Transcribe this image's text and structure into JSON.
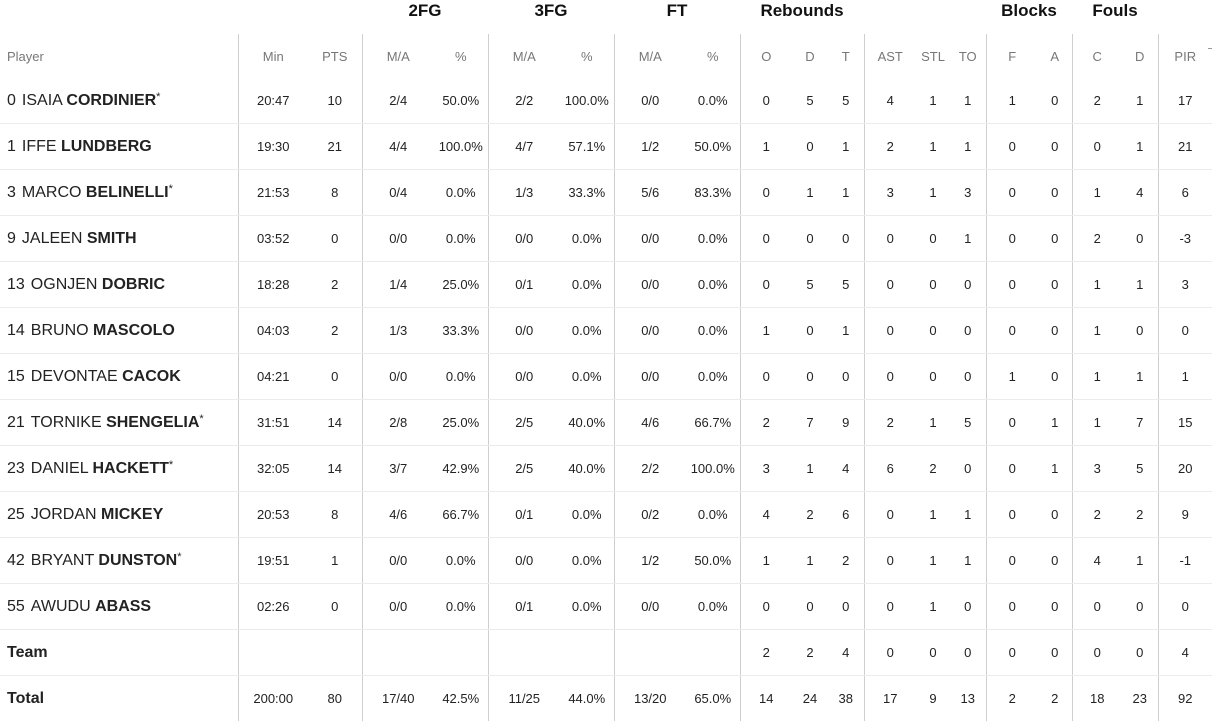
{
  "groups": {
    "fg2": "2FG",
    "fg3": "3FG",
    "ft": "FT",
    "rebounds": "Rebounds",
    "blocks": "Blocks",
    "fouls": "Fouls"
  },
  "columns": {
    "player": "Player",
    "min": "Min",
    "pts": "PTS",
    "fg2_ma": "M/A",
    "fg2_pct": "%",
    "fg3_ma": "M/A",
    "fg3_pct": "%",
    "ft_ma": "M/A",
    "ft_pct": "%",
    "reb_o": "O",
    "reb_d": "D",
    "reb_t": "T",
    "ast": "AST",
    "stl": "STL",
    "to": "TO",
    "blk_f": "F",
    "blk_a": "A",
    "foul_c": "C",
    "foul_d": "D",
    "pir": "PIR"
  },
  "rows": [
    {
      "num": "0",
      "first": "ISAIA",
      "last": "CORDINIER",
      "star": "*",
      "min": "20:47",
      "pts": "10",
      "fg2_ma": "2/4",
      "fg2_pct": "50.0%",
      "fg3_ma": "2/2",
      "fg3_pct": "100.0%",
      "ft_ma": "0/0",
      "ft_pct": "0.0%",
      "reb_o": "0",
      "reb_d": "5",
      "reb_t": "5",
      "ast": "4",
      "stl": "1",
      "to": "1",
      "blk_f": "1",
      "blk_a": "0",
      "foul_c": "2",
      "foul_d": "1",
      "pir": "17"
    },
    {
      "num": "1",
      "first": "IFFE",
      "last": "LUNDBERG",
      "star": "",
      "min": "19:30",
      "pts": "21",
      "fg2_ma": "4/4",
      "fg2_pct": "100.0%",
      "fg3_ma": "4/7",
      "fg3_pct": "57.1%",
      "ft_ma": "1/2",
      "ft_pct": "50.0%",
      "reb_o": "1",
      "reb_d": "0",
      "reb_t": "1",
      "ast": "2",
      "stl": "1",
      "to": "1",
      "blk_f": "0",
      "blk_a": "0",
      "foul_c": "0",
      "foul_d": "1",
      "pir": "21"
    },
    {
      "num": "3",
      "first": "MARCO",
      "last": "BELINELLI",
      "star": "*",
      "min": "21:53",
      "pts": "8",
      "fg2_ma": "0/4",
      "fg2_pct": "0.0%",
      "fg3_ma": "1/3",
      "fg3_pct": "33.3%",
      "ft_ma": "5/6",
      "ft_pct": "83.3%",
      "reb_o": "0",
      "reb_d": "1",
      "reb_t": "1",
      "ast": "3",
      "stl": "1",
      "to": "3",
      "blk_f": "0",
      "blk_a": "0",
      "foul_c": "1",
      "foul_d": "4",
      "pir": "6"
    },
    {
      "num": "9",
      "first": "JALEEN",
      "last": "SMITH",
      "star": "",
      "min": "03:52",
      "pts": "0",
      "fg2_ma": "0/0",
      "fg2_pct": "0.0%",
      "fg3_ma": "0/0",
      "fg3_pct": "0.0%",
      "ft_ma": "0/0",
      "ft_pct": "0.0%",
      "reb_o": "0",
      "reb_d": "0",
      "reb_t": "0",
      "ast": "0",
      "stl": "0",
      "to": "1",
      "blk_f": "0",
      "blk_a": "0",
      "foul_c": "2",
      "foul_d": "0",
      "pir": "-3"
    },
    {
      "num": "13",
      "first": "OGNJEN",
      "last": "DOBRIC",
      "star": "",
      "min": "18:28",
      "pts": "2",
      "fg2_ma": "1/4",
      "fg2_pct": "25.0%",
      "fg3_ma": "0/1",
      "fg3_pct": "0.0%",
      "ft_ma": "0/0",
      "ft_pct": "0.0%",
      "reb_o": "0",
      "reb_d": "5",
      "reb_t": "5",
      "ast": "0",
      "stl": "0",
      "to": "0",
      "blk_f": "0",
      "blk_a": "0",
      "foul_c": "1",
      "foul_d": "1",
      "pir": "3"
    },
    {
      "num": "14",
      "first": "BRUNO",
      "last": "MASCOLO",
      "star": "",
      "min": "04:03",
      "pts": "2",
      "fg2_ma": "1/3",
      "fg2_pct": "33.3%",
      "fg3_ma": "0/0",
      "fg3_pct": "0.0%",
      "ft_ma": "0/0",
      "ft_pct": "0.0%",
      "reb_o": "1",
      "reb_d": "0",
      "reb_t": "1",
      "ast": "0",
      "stl": "0",
      "to": "0",
      "blk_f": "0",
      "blk_a": "0",
      "foul_c": "1",
      "foul_d": "0",
      "pir": "0"
    },
    {
      "num": "15",
      "first": "DEVONTAE",
      "last": "CACOK",
      "star": "",
      "min": "04:21",
      "pts": "0",
      "fg2_ma": "0/0",
      "fg2_pct": "0.0%",
      "fg3_ma": "0/0",
      "fg3_pct": "0.0%",
      "ft_ma": "0/0",
      "ft_pct": "0.0%",
      "reb_o": "0",
      "reb_d": "0",
      "reb_t": "0",
      "ast": "0",
      "stl": "0",
      "to": "0",
      "blk_f": "1",
      "blk_a": "0",
      "foul_c": "1",
      "foul_d": "1",
      "pir": "1"
    },
    {
      "num": "21",
      "first": "TORNIKE",
      "last": "SHENGELIA",
      "star": "*",
      "min": "31:51",
      "pts": "14",
      "fg2_ma": "2/8",
      "fg2_pct": "25.0%",
      "fg3_ma": "2/5",
      "fg3_pct": "40.0%",
      "ft_ma": "4/6",
      "ft_pct": "66.7%",
      "reb_o": "2",
      "reb_d": "7",
      "reb_t": "9",
      "ast": "2",
      "stl": "1",
      "to": "5",
      "blk_f": "0",
      "blk_a": "1",
      "foul_c": "1",
      "foul_d": "7",
      "pir": "15"
    },
    {
      "num": "23",
      "first": "DANIEL",
      "last": "HACKETT",
      "star": "*",
      "min": "32:05",
      "pts": "14",
      "fg2_ma": "3/7",
      "fg2_pct": "42.9%",
      "fg3_ma": "2/5",
      "fg3_pct": "40.0%",
      "ft_ma": "2/2",
      "ft_pct": "100.0%",
      "reb_o": "3",
      "reb_d": "1",
      "reb_t": "4",
      "ast": "6",
      "stl": "2",
      "to": "0",
      "blk_f": "0",
      "blk_a": "1",
      "foul_c": "3",
      "foul_d": "5",
      "pir": "20"
    },
    {
      "num": "25",
      "first": "JORDAN",
      "last": "MICKEY",
      "star": "",
      "min": "20:53",
      "pts": "8",
      "fg2_ma": "4/6",
      "fg2_pct": "66.7%",
      "fg3_ma": "0/1",
      "fg3_pct": "0.0%",
      "ft_ma": "0/2",
      "ft_pct": "0.0%",
      "reb_o": "4",
      "reb_d": "2",
      "reb_t": "6",
      "ast": "0",
      "stl": "1",
      "to": "1",
      "blk_f": "0",
      "blk_a": "0",
      "foul_c": "2",
      "foul_d": "2",
      "pir": "9"
    },
    {
      "num": "42",
      "first": "BRYANT",
      "last": "DUNSTON",
      "star": "*",
      "min": "19:51",
      "pts": "1",
      "fg2_ma": "0/0",
      "fg2_pct": "0.0%",
      "fg3_ma": "0/0",
      "fg3_pct": "0.0%",
      "ft_ma": "1/2",
      "ft_pct": "50.0%",
      "reb_o": "1",
      "reb_d": "1",
      "reb_t": "2",
      "ast": "0",
      "stl": "1",
      "to": "1",
      "blk_f": "0",
      "blk_a": "0",
      "foul_c": "4",
      "foul_d": "1",
      "pir": "-1"
    },
    {
      "num": "55",
      "first": "AWUDU",
      "last": "ABASS",
      "star": "",
      "min": "02:26",
      "pts": "0",
      "fg2_ma": "0/0",
      "fg2_pct": "0.0%",
      "fg3_ma": "0/1",
      "fg3_pct": "0.0%",
      "ft_ma": "0/0",
      "ft_pct": "0.0%",
      "reb_o": "0",
      "reb_d": "0",
      "reb_t": "0",
      "ast": "0",
      "stl": "1",
      "to": "0",
      "blk_f": "0",
      "blk_a": "0",
      "foul_c": "0",
      "foul_d": "0",
      "pir": "0"
    }
  ],
  "team": {
    "label": "Team",
    "min": "",
    "pts": "",
    "fg2_ma": "",
    "fg2_pct": "",
    "fg3_ma": "",
    "fg3_pct": "",
    "ft_ma": "",
    "ft_pct": "",
    "reb_o": "2",
    "reb_d": "2",
    "reb_t": "4",
    "ast": "0",
    "stl": "0",
    "to": "0",
    "blk_f": "0",
    "blk_a": "0",
    "foul_c": "0",
    "foul_d": "0",
    "pir": "4"
  },
  "total": {
    "label": "Total",
    "min": "200:00",
    "pts": "80",
    "fg2_ma": "17/40",
    "fg2_pct": "42.5%",
    "fg3_ma": "11/25",
    "fg3_pct": "44.0%",
    "ft_ma": "13/20",
    "ft_pct": "65.0%",
    "reb_o": "14",
    "reb_d": "24",
    "reb_t": "38",
    "ast": "17",
    "stl": "9",
    "to": "13",
    "blk_f": "2",
    "blk_a": "2",
    "foul_c": "18",
    "foul_d": "23",
    "pir": "92"
  }
}
